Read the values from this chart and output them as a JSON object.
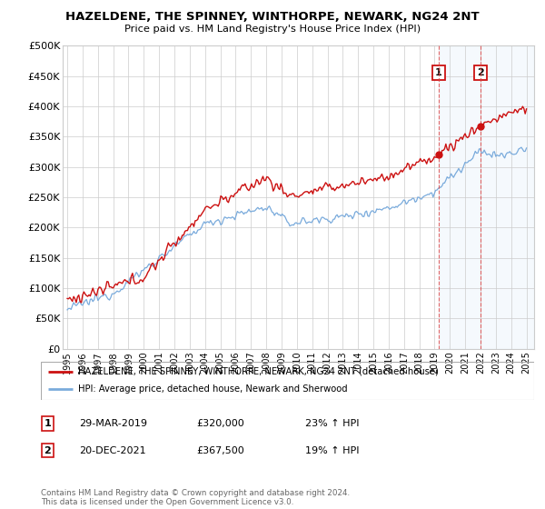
{
  "title": "HAZELDENE, THE SPINNEY, WINTHORPE, NEWARK, NG24 2NT",
  "subtitle": "Price paid vs. HM Land Registry's House Price Index (HPI)",
  "ylim": [
    0,
    500000
  ],
  "yticks": [
    0,
    50000,
    100000,
    150000,
    200000,
    250000,
    300000,
    350000,
    400000,
    450000,
    500000
  ],
  "ytick_labels": [
    "£0",
    "£50K",
    "£100K",
    "£150K",
    "£200K",
    "£250K",
    "£300K",
    "£350K",
    "£400K",
    "£450K",
    "£500K"
  ],
  "xlim_start": 1994.7,
  "xlim_end": 2025.5,
  "hpi_color": "#7aabdc",
  "price_color": "#cc1111",
  "legend_label_price": "HAZELDENE, THE SPINNEY, WINTHORPE, NEWARK, NG24 2NT (detached house)",
  "legend_label_hpi": "HPI: Average price, detached house, Newark and Sherwood",
  "sale1_label": "1",
  "sale1_date": "29-MAR-2019",
  "sale1_price": "£320,000",
  "sale1_hpi": "23% ↑ HPI",
  "sale1_x": 2019.24,
  "sale1_y": 320000,
  "sale2_label": "2",
  "sale2_date": "20-DEC-2021",
  "sale2_price": "£367,500",
  "sale2_hpi": "19% ↑ HPI",
  "sale2_x": 2021.97,
  "sale2_y": 367500,
  "footnote": "Contains HM Land Registry data © Crown copyright and database right 2024.\nThis data is licensed under the Open Government Licence v3.0.",
  "background_color": "#ffffff",
  "grid_color": "#cccccc",
  "shade_color": "#cce0f5"
}
